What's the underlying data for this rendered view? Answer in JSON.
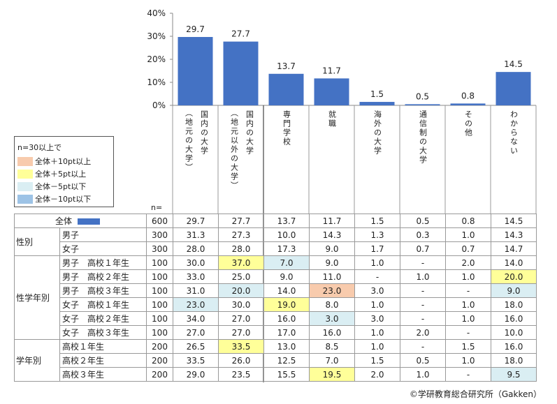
{
  "chart_data": {
    "type": "bar",
    "categories": [
      "国内の大学（地元の大学）",
      "国内の大学（地元以外の大学）",
      "専門学校",
      "就職",
      "海外の大学",
      "通信制の大学",
      "その他",
      "わからない"
    ],
    "values": [
      29.7,
      27.7,
      13.7,
      11.7,
      1.5,
      0.5,
      0.8,
      14.5
    ],
    "value_labels": [
      "29.7",
      "27.7",
      "13.7",
      "11.7",
      "1.5",
      "0.5",
      "0.8",
      "14.5"
    ],
    "yticks": [
      "0%",
      "10%",
      "20%",
      "30%",
      "40%"
    ],
    "ylim": [
      0,
      40
    ],
    "grid": false,
    "bar_color": "#4472C4"
  },
  "legend": {
    "title": "n=30以上で",
    "items": [
      {
        "label": "全体＋10pt以上",
        "color": "#F8CBAD"
      },
      {
        "label": "全体＋5pt以上",
        "color": "#FFFF99"
      },
      {
        "label": "全体－5pt以下",
        "color": "#DAEEF3"
      },
      {
        "label": "全体－10pt以下",
        "color": "#9DC3E6"
      }
    ]
  },
  "table": {
    "n_label": "n=",
    "total": {
      "label": "全体",
      "n": "600",
      "values": [
        "29.7",
        "27.7",
        "13.7",
        "11.7",
        "1.5",
        "0.5",
        "0.8",
        "14.5"
      ]
    },
    "groups": [
      {
        "label": "性別",
        "rows": [
          {
            "label": "男子",
            "n": "300",
            "values": [
              "31.3",
              "27.3",
              "10.0",
              "14.3",
              "1.3",
              "0.3",
              "1.0",
              "14.3"
            ],
            "hl": [
              null,
              null,
              null,
              null,
              null,
              null,
              null,
              null
            ]
          },
          {
            "label": "女子",
            "n": "300",
            "values": [
              "28.0",
              "28.0",
              "17.3",
              "9.0",
              "1.7",
              "0.7",
              "0.7",
              "14.7"
            ],
            "hl": [
              null,
              null,
              null,
              null,
              null,
              null,
              null,
              null
            ]
          }
        ]
      },
      {
        "label": "性学年別",
        "rows": [
          {
            "label": "男子　高校１年生",
            "n": "100",
            "values": [
              "30.0",
              "37.0",
              "7.0",
              "9.0",
              "1.0",
              "-",
              "2.0",
              "14.0"
            ],
            "hl": [
              null,
              "p5",
              "m5",
              null,
              null,
              null,
              null,
              null
            ]
          },
          {
            "label": "男子　高校２年生",
            "n": "100",
            "values": [
              "33.0",
              "25.0",
              "9.0",
              "11.0",
              "-",
              "1.0",
              "1.0",
              "20.0"
            ],
            "hl": [
              null,
              null,
              null,
              null,
              null,
              null,
              null,
              "p5"
            ]
          },
          {
            "label": "男子　高校３年生",
            "n": "100",
            "values": [
              "31.0",
              "20.0",
              "14.0",
              "23.0",
              "3.0",
              "-",
              "-",
              "9.0"
            ],
            "hl": [
              null,
              "m5",
              null,
              "p10",
              null,
              null,
              null,
              "m5"
            ]
          },
          {
            "label": "女子　高校１年生",
            "n": "100",
            "values": [
              "23.0",
              "30.0",
              "19.0",
              "8.0",
              "1.0",
              "-",
              "1.0",
              "18.0"
            ],
            "hl": [
              "m5",
              null,
              "p5",
              null,
              null,
              null,
              null,
              null
            ]
          },
          {
            "label": "女子　高校２年生",
            "n": "100",
            "values": [
              "34.0",
              "27.0",
              "16.0",
              "3.0",
              "3.0",
              "-",
              "1.0",
              "16.0"
            ],
            "hl": [
              null,
              null,
              null,
              "m5",
              null,
              null,
              null,
              null
            ]
          },
          {
            "label": "女子　高校３年生",
            "n": "100",
            "values": [
              "27.0",
              "27.0",
              "17.0",
              "16.0",
              "1.0",
              "2.0",
              "-",
              "10.0"
            ],
            "hl": [
              null,
              null,
              null,
              null,
              null,
              null,
              null,
              null
            ]
          }
        ]
      },
      {
        "label": "学年別",
        "rows": [
          {
            "label": "高校１年生",
            "n": "200",
            "values": [
              "26.5",
              "33.5",
              "13.0",
              "8.5",
              "1.0",
              "-",
              "1.5",
              "16.0"
            ],
            "hl": [
              null,
              "p5",
              null,
              null,
              null,
              null,
              null,
              null
            ]
          },
          {
            "label": "高校２年生",
            "n": "200",
            "values": [
              "33.5",
              "26.0",
              "12.5",
              "7.0",
              "1.5",
              "0.5",
              "1.0",
              "18.0"
            ],
            "hl": [
              null,
              null,
              null,
              null,
              null,
              null,
              null,
              null
            ]
          },
          {
            "label": "高校３年生",
            "n": "200",
            "values": [
              "29.0",
              "23.5",
              "15.5",
              "19.5",
              "2.0",
              "1.0",
              "-",
              "9.5"
            ],
            "hl": [
              null,
              null,
              null,
              "p5",
              null,
              null,
              null,
              "m5"
            ]
          }
        ]
      }
    ]
  },
  "highlight_colors": {
    "p10": "#F8CBAD",
    "p5": "#FFFF99",
    "m5": "#DAEEF3",
    "m10": "#9DC3E6"
  },
  "copyright": "©学研教育総合研究所（Gakken）"
}
